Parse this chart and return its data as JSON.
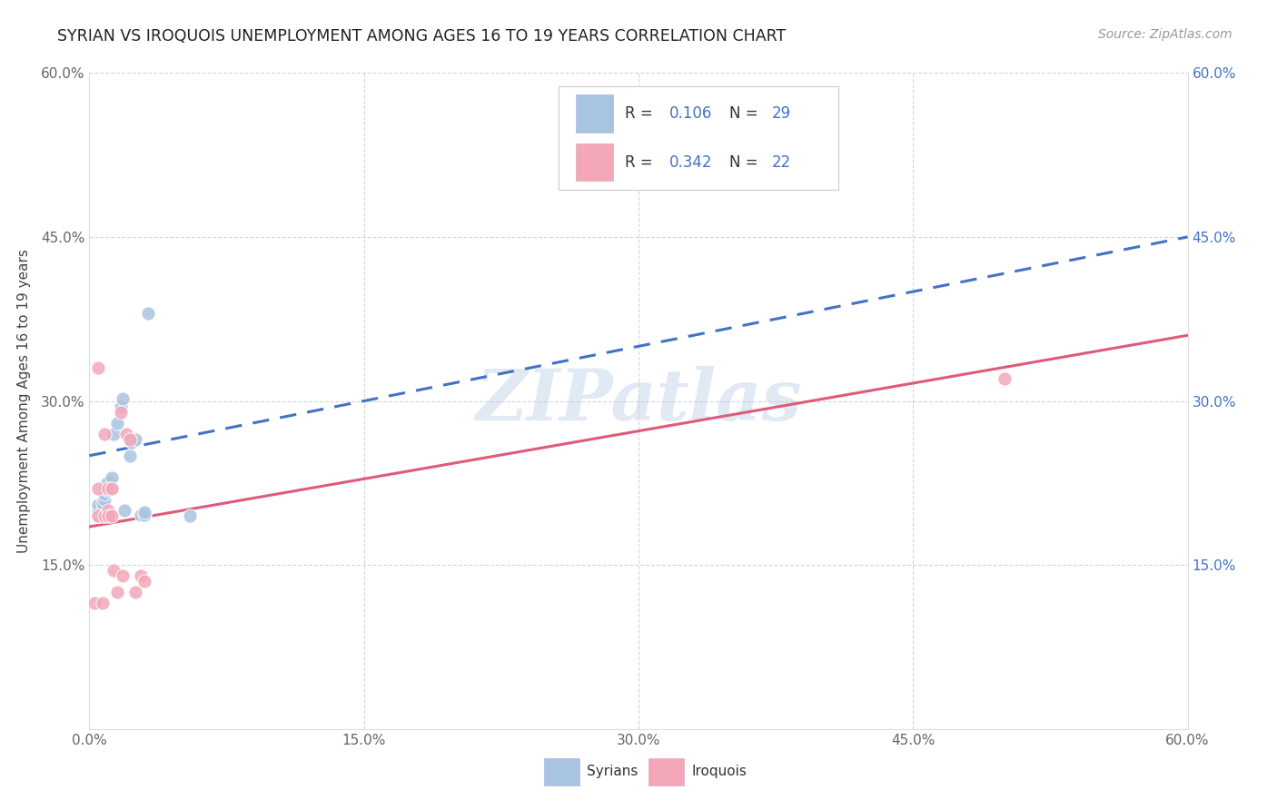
{
  "title": "SYRIAN VS IROQUOIS UNEMPLOYMENT AMONG AGES 16 TO 19 YEARS CORRELATION CHART",
  "source": "Source: ZipAtlas.com",
  "ylabel": "Unemployment Among Ages 16 to 19 years",
  "x_min": 0.0,
  "x_max": 0.6,
  "y_min": 0.0,
  "y_max": 0.6,
  "x_ticks": [
    0.0,
    0.15,
    0.3,
    0.45,
    0.6
  ],
  "x_tick_labels": [
    "0.0%",
    "15.0%",
    "30.0%",
    "45.0%",
    "60.0%"
  ],
  "y_ticks": [
    0.15,
    0.3,
    0.45,
    0.6
  ],
  "y_tick_labels": [
    "15.0%",
    "30.0%",
    "45.0%",
    "60.0%"
  ],
  "watermark": "ZIPatlas",
  "legend_R1": "0.106",
  "legend_N1": "29",
  "legend_R2": "0.342",
  "legend_N2": "22",
  "syrians_color": "#a8c4e0",
  "iroquois_color": "#f4a7b9",
  "line1_color": "#4472c4",
  "line2_color": "#e05a7a",
  "line1_style": "--",
  "line2_style": "-",
  "syr_x": [
    0.005,
    0.005,
    0.005,
    0.007,
    0.007,
    0.007,
    0.007,
    0.008,
    0.008,
    0.009,
    0.009,
    0.01,
    0.01,
    0.01,
    0.012,
    0.012,
    0.013,
    0.015,
    0.017,
    0.018,
    0.019,
    0.022,
    0.023,
    0.025,
    0.028,
    0.03,
    0.03,
    0.032,
    0.055
  ],
  "syr_y": [
    0.195,
    0.2,
    0.205,
    0.195,
    0.198,
    0.202,
    0.207,
    0.21,
    0.215,
    0.22,
    0.225,
    0.218,
    0.222,
    0.226,
    0.22,
    0.23,
    0.27,
    0.28,
    0.295,
    0.302,
    0.2,
    0.25,
    0.262,
    0.265,
    0.196,
    0.196,
    0.198,
    0.38,
    0.195
  ],
  "iroq_x": [
    0.003,
    0.005,
    0.005,
    0.005,
    0.007,
    0.008,
    0.008,
    0.01,
    0.01,
    0.01,
    0.012,
    0.012,
    0.013,
    0.015,
    0.017,
    0.018,
    0.02,
    0.022,
    0.025,
    0.028,
    0.03,
    0.5
  ],
  "iroq_y": [
    0.115,
    0.195,
    0.22,
    0.33,
    0.115,
    0.195,
    0.27,
    0.2,
    0.22,
    0.195,
    0.195,
    0.22,
    0.145,
    0.125,
    0.29,
    0.14,
    0.27,
    0.265,
    0.125,
    0.14,
    0.135,
    0.32
  ],
  "line1_x0": 0.0,
  "line1_y0": 0.25,
  "line1_x1": 0.6,
  "line1_y1": 0.45,
  "line2_x0": 0.0,
  "line2_y0": 0.185,
  "line2_x1": 0.6,
  "line2_y1": 0.36
}
